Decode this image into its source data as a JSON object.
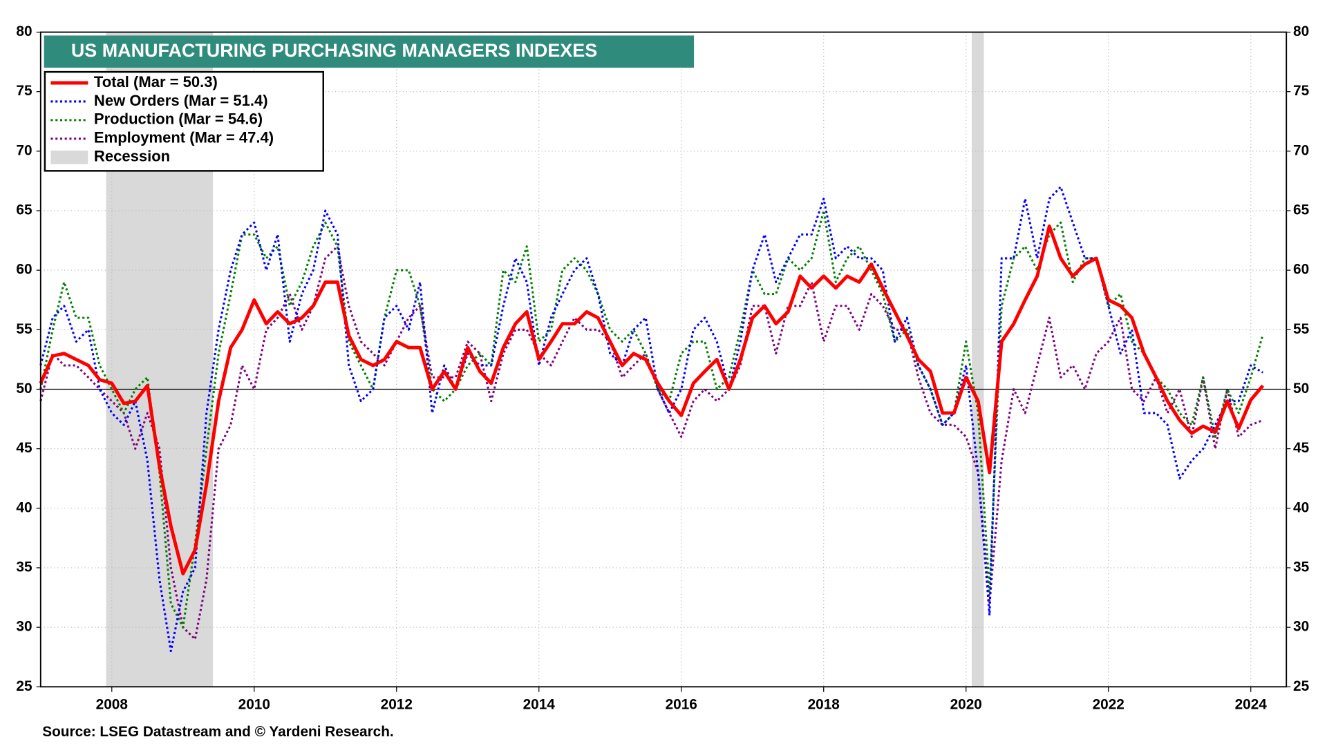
{
  "chart_data": {
    "type": "line",
    "title": "US MANUFACTURING PURCHASING MANAGERS INDEXES",
    "source": "Source: LSEG Datastream and © Yardeni Research.",
    "x": [
      2007,
      2007.17,
      2007.33,
      2007.5,
      2007.67,
      2007.83,
      2008,
      2008.17,
      2008.33,
      2008.5,
      2008.67,
      2008.83,
      2009,
      2009.17,
      2009.33,
      2009.5,
      2009.67,
      2009.83,
      2010,
      2010.17,
      2010.33,
      2010.5,
      2010.67,
      2010.83,
      2011,
      2011.17,
      2011.33,
      2011.5,
      2011.67,
      2011.83,
      2012,
      2012.17,
      2012.33,
      2012.5,
      2012.67,
      2012.83,
      2013,
      2013.17,
      2013.33,
      2013.5,
      2013.67,
      2013.83,
      2014,
      2014.17,
      2014.33,
      2014.5,
      2014.67,
      2014.83,
      2015,
      2015.17,
      2015.33,
      2015.5,
      2015.67,
      2015.83,
      2016,
      2016.17,
      2016.33,
      2016.5,
      2016.67,
      2016.83,
      2017,
      2017.17,
      2017.33,
      2017.5,
      2017.67,
      2017.83,
      2018,
      2018.17,
      2018.33,
      2018.5,
      2018.67,
      2018.83,
      2019,
      2019.17,
      2019.33,
      2019.5,
      2019.67,
      2019.83,
      2020,
      2020.17,
      2020.33,
      2020.5,
      2020.67,
      2020.83,
      2021,
      2021.17,
      2021.33,
      2021.5,
      2021.67,
      2021.83,
      2022,
      2022.17,
      2022.33,
      2022.5,
      2022.67,
      2022.83,
      2023,
      2023.17,
      2023.33,
      2023.5,
      2023.67,
      2023.83,
      2024,
      2024.17
    ],
    "series": [
      {
        "name": "Total  (Mar = 50.3)",
        "color": "#ff0000",
        "style": "solid",
        "width": 4,
        "values": [
          50.5,
          52.8,
          53.0,
          52.5,
          52.0,
          50.8,
          50.5,
          48.8,
          49.0,
          50.3,
          43.5,
          38.5,
          34.5,
          36.5,
          42.0,
          49.0,
          53.5,
          55.0,
          57.5,
          55.5,
          56.5,
          55.5,
          56.0,
          57.0,
          59.0,
          59.0,
          54.5,
          52.5,
          52.0,
          52.5,
          54.0,
          53.5,
          53.5,
          50.0,
          51.5,
          50.0,
          53.5,
          51.5,
          50.5,
          53.5,
          55.5,
          56.5,
          52.5,
          54.0,
          55.5,
          55.5,
          56.5,
          56.0,
          54.0,
          52.0,
          53.0,
          52.5,
          50.5,
          49.0,
          47.8,
          50.5,
          51.5,
          52.5,
          50.0,
          52.5,
          56.0,
          57.0,
          55.5,
          56.5,
          59.5,
          58.5,
          59.5,
          58.5,
          59.5,
          59.0,
          60.5,
          58.5,
          56.5,
          54.5,
          52.5,
          51.5,
          48.0,
          48.0,
          51.0,
          49.0,
          43.0,
          54.0,
          55.5,
          57.5,
          59.5,
          63.7,
          61.0,
          59.5,
          60.5,
          61.0,
          57.5,
          57.0,
          56.0,
          53.0,
          51.0,
          49.0,
          47.4,
          46.3,
          46.9,
          46.4,
          49.0,
          46.7,
          49.1,
          50.3
        ]
      },
      {
        "name": "New Orders (Mar = 51.4)",
        "color": "#0000ff",
        "style": "dotted",
        "width": 2.5,
        "values": [
          52,
          56,
          57,
          54,
          55,
          50,
          48,
          47,
          49,
          44,
          34,
          28,
          33,
          35,
          48,
          55,
          60,
          63,
          64,
          60,
          63,
          54,
          58,
          60,
          65,
          63,
          52,
          49,
          50,
          56,
          57,
          55,
          59,
          48,
          52,
          50,
          53,
          52,
          52,
          57,
          61,
          59,
          52,
          56,
          58,
          60,
          61,
          58,
          53,
          52,
          55,
          56,
          50,
          48,
          50,
          55,
          56,
          54,
          50,
          54,
          60,
          63,
          59,
          61,
          63,
          63,
          66,
          61,
          62,
          61,
          61,
          60,
          54,
          56,
          52,
          50,
          47,
          48,
          52,
          43,
          31,
          61,
          61,
          66,
          61,
          66,
          67,
          64,
          61,
          61,
          57,
          53,
          55,
          48,
          48,
          47,
          42.5,
          44,
          45,
          47,
          49,
          49,
          52,
          51.4
        ]
      },
      {
        "name": "Production  (Mar = 54.6)",
        "color": "#008000",
        "style": "dotted",
        "width": 2.5,
        "values": [
          50,
          55,
          59,
          56,
          56,
          52,
          50,
          48,
          50,
          51,
          43,
          32,
          30,
          37,
          45,
          53,
          58,
          63,
          63,
          61,
          62,
          57,
          59,
          62,
          64,
          62,
          54,
          52,
          50,
          56,
          60,
          60,
          57,
          50,
          49,
          50,
          52,
          53,
          52,
          60,
          59,
          62,
          54,
          55,
          60,
          61,
          60,
          58,
          55,
          54,
          55,
          53,
          50,
          49,
          53,
          54,
          54,
          50,
          51,
          55,
          60,
          58,
          58,
          61,
          60,
          61,
          65,
          59,
          61,
          62,
          60,
          58,
          54,
          55,
          52,
          50,
          47,
          48,
          54,
          48,
          33,
          57,
          61,
          62,
          60,
          63,
          64,
          59,
          61,
          61,
          57,
          58,
          54,
          53,
          51,
          50,
          48,
          47,
          51,
          46,
          50,
          48,
          51,
          54.6
        ]
      },
      {
        "name": "Employment  (Mar = 47.4)",
        "color": "#800080",
        "style": "dotted",
        "width": 2.5,
        "values": [
          49,
          53,
          52,
          52,
          51,
          50,
          49,
          48,
          45,
          48,
          45,
          35,
          30,
          29,
          34,
          45,
          47,
          52,
          50,
          55,
          56,
          58,
          55,
          57,
          61,
          62,
          57,
          54,
          53,
          52,
          54,
          56,
          57,
          51,
          51,
          51,
          54,
          53,
          49,
          53,
          55,
          55,
          53,
          52,
          54,
          56,
          55,
          55,
          54,
          51,
          52,
          53,
          50,
          48,
          46,
          49,
          50,
          49,
          50,
          52,
          57,
          57,
          53,
          57,
          57,
          59,
          54,
          57,
          57,
          55,
          58,
          57,
          55,
          55,
          51,
          48,
          47,
          47,
          46,
          43,
          32,
          44,
          50,
          48,
          52,
          56,
          51,
          52,
          50,
          53,
          54,
          56,
          50,
          49,
          51,
          48,
          50,
          46,
          51,
          45,
          50,
          46,
          47,
          47.4
        ]
      }
    ],
    "recession": {
      "name": "Recession",
      "color": "#d9d9d9",
      "periods": [
        [
          2007.92,
          2009.42
        ],
        [
          2020.08,
          2020.25
        ]
      ]
    },
    "reference_line": 50,
    "xlim": [
      2007,
      2024.5
    ],
    "xticks": [
      2008,
      2010,
      2012,
      2014,
      2016,
      2018,
      2020,
      2022,
      2024
    ],
    "ylim": [
      25,
      80
    ],
    "yticks": [
      25,
      30,
      35,
      40,
      45,
      50,
      55,
      60,
      65,
      70,
      75,
      80
    ],
    "y2lim": [
      25,
      80
    ],
    "y2ticks": [
      25,
      30,
      35,
      40,
      45,
      50,
      55,
      60,
      65,
      70,
      75,
      80
    ],
    "grid": true,
    "legend": "top-left"
  }
}
